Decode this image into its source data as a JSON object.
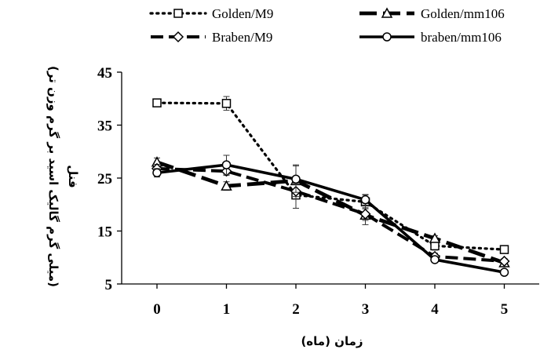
{
  "chart_data": {
    "type": "line",
    "xlabel": "زمان (ماه)",
    "ylabel_line1": "فنل",
    "ylabel_line2": "(میلی گرم گالیک اسید بر گرم وزن تر)",
    "x": [
      0,
      1,
      2,
      3,
      4,
      5
    ],
    "xlim": [
      0,
      5
    ],
    "ylim": [
      5,
      45
    ],
    "yticks": [
      5,
      15,
      25,
      35,
      45
    ],
    "legend_position": "top",
    "series": [
      {
        "name": "Golden/M9",
        "line": "dotted",
        "marker": "square",
        "values": [
          39.2,
          39.1,
          21.8,
          20.5,
          12.2,
          11.5
        ],
        "errors": [
          0.5,
          1.3,
          2.5,
          1.3,
          0.8,
          0.6
        ]
      },
      {
        "name": "Golden/mm106",
        "line": "long-dash-thick",
        "marker": "triangle",
        "values": [
          28.0,
          23.5,
          24.5,
          18.0,
          13.6,
          9.0
        ],
        "errors": [
          0.8,
          0.8,
          3.0,
          1.8,
          0.5,
          0.5
        ]
      },
      {
        "name": "Braben/M9",
        "line": "dashed",
        "marker": "diamond",
        "values": [
          26.8,
          26.3,
          22.5,
          18.2,
          10.2,
          9.3
        ],
        "errors": [
          0.8,
          0.8,
          1.5,
          1.2,
          0.6,
          0.5
        ]
      },
      {
        "name": "braben/mm106",
        "line": "solid",
        "marker": "circle",
        "values": [
          26.0,
          27.5,
          24.8,
          20.9,
          9.6,
          7.2
        ],
        "errors": [
          0.8,
          1.8,
          2.5,
          1.0,
          0.4,
          0.3
        ]
      }
    ]
  }
}
